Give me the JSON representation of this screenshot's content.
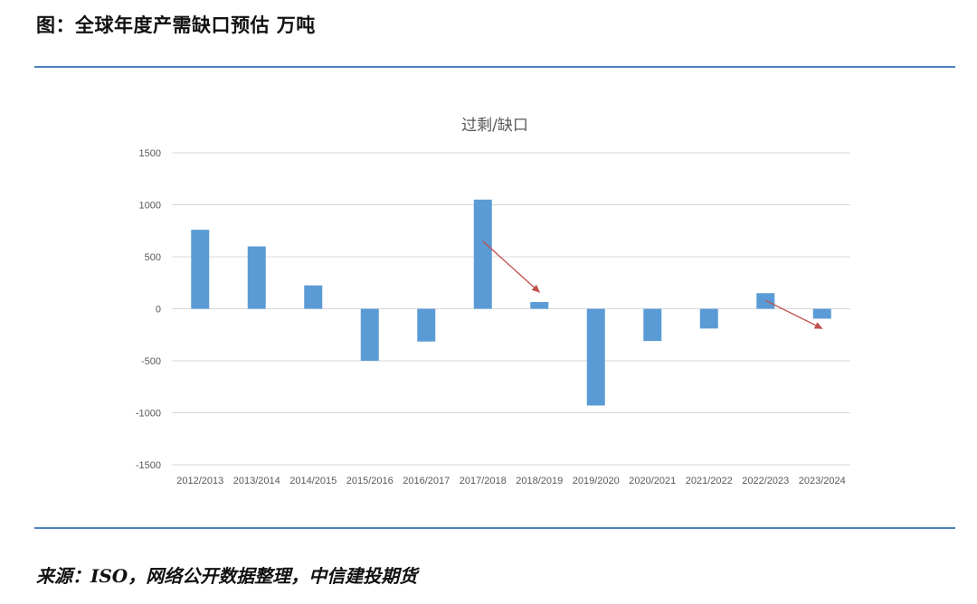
{
  "header": {
    "title": "图：全球年度产需缺口预估 万吨"
  },
  "footer": {
    "source": "来源：ISO，网络公开数据整理，中信建投期货"
  },
  "colors": {
    "bar": "#5b9bd5",
    "grid": "#d9d9d9",
    "rule": "#4f81bd",
    "arrow": "#c0504d"
  },
  "chart_data": {
    "type": "bar",
    "title": "过剩/缺口",
    "xlabel": "",
    "ylabel": "",
    "ylim": [
      -1500,
      1500
    ],
    "yticks": [
      1500,
      1000,
      500,
      0,
      -500,
      -1000,
      -1500
    ],
    "grid": true,
    "legend": "none",
    "categories": [
      "2012/2013",
      "2013/2014",
      "2014/2015",
      "2015/2016",
      "2016/2017",
      "2017/2018",
      "2018/2019",
      "2019/2020",
      "2020/2021",
      "2021/2022",
      "2022/2023",
      "2023/2024"
    ],
    "values": [
      760,
      600,
      225,
      -500,
      -315,
      1050,
      65,
      -930,
      -310,
      -190,
      150,
      -95
    ],
    "annotations": [
      {
        "type": "arrow",
        "from": [
          "2017/2018",
          650
        ],
        "to": [
          "2018/2019",
          160
        ]
      },
      {
        "type": "arrow",
        "from": [
          "2022/2023",
          80
        ],
        "to": [
          "2023/2024",
          -190
        ]
      }
    ]
  }
}
